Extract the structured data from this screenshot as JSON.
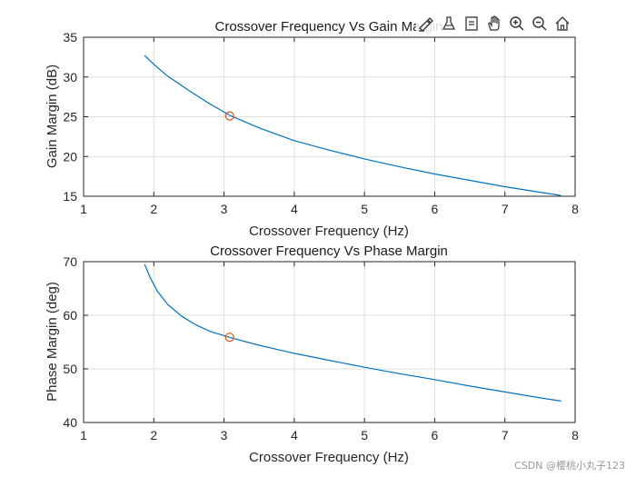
{
  "chart_data": [
    {
      "type": "line",
      "title": "Crossover Frequency Vs Gain Margin",
      "xlabel": "Crossover Frequency (Hz)",
      "ylabel": "Gain Margin (dB)",
      "xlim": [
        1,
        8
      ],
      "ylim": [
        15,
        35
      ],
      "xticks": [
        "1",
        "2",
        "3",
        "4",
        "5",
        "6",
        "7",
        "8"
      ],
      "yticks": [
        "15",
        "20",
        "25",
        "30",
        "35"
      ],
      "grid": true,
      "series": [
        {
          "color": "#0072bd",
          "x": [
            1.87,
            2.0,
            2.2,
            2.5,
            2.8,
            3.1,
            3.5,
            4.0,
            4.5,
            5.0,
            5.5,
            6.0,
            6.5,
            7.0,
            7.5,
            7.8
          ],
          "y": [
            32.7,
            31.6,
            30.1,
            28.3,
            26.6,
            25.1,
            23.6,
            22.0,
            20.8,
            19.7,
            18.7,
            17.8,
            17.0,
            16.2,
            15.5,
            15.1
          ]
        }
      ],
      "markers": [
        {
          "x": 3.08,
          "y": 25.1,
          "style": "circle",
          "color": "#d95319"
        }
      ]
    },
    {
      "type": "line",
      "title": "Crossover Frequency Vs Phase Margin",
      "xlabel": "Crossover Frequency (Hz)",
      "ylabel": "Phase Margin (deg)",
      "xlim": [
        1,
        8
      ],
      "ylim": [
        40,
        70
      ],
      "xticks": [
        "1",
        "2",
        "3",
        "4",
        "5",
        "6",
        "7",
        "8"
      ],
      "yticks": [
        "40",
        "50",
        "60",
        "70"
      ],
      "grid": true,
      "series": [
        {
          "color": "#0072bd",
          "x": [
            1.87,
            1.95,
            2.05,
            2.2,
            2.4,
            2.6,
            2.8,
            3.1,
            3.5,
            4.0,
            4.5,
            5.0,
            5.5,
            6.0,
            6.5,
            7.0,
            7.5,
            7.8
          ],
          "y": [
            69.5,
            67.0,
            64.5,
            62.0,
            59.8,
            58.2,
            57.0,
            55.8,
            54.4,
            52.9,
            51.6,
            50.3,
            49.1,
            48.0,
            46.8,
            45.7,
            44.6,
            44.0
          ]
        }
      ],
      "markers": [
        {
          "x": 3.08,
          "y": 55.9,
          "style": "circle",
          "color": "#d95319"
        }
      ]
    }
  ],
  "toolbar": {
    "icons": [
      "brush-icon",
      "data-tips-icon",
      "edit-plot-icon",
      "pan-icon",
      "zoom-in-icon",
      "zoom-out-icon",
      "home-icon"
    ]
  },
  "watermark": "CSDN @樱桃小丸子123"
}
